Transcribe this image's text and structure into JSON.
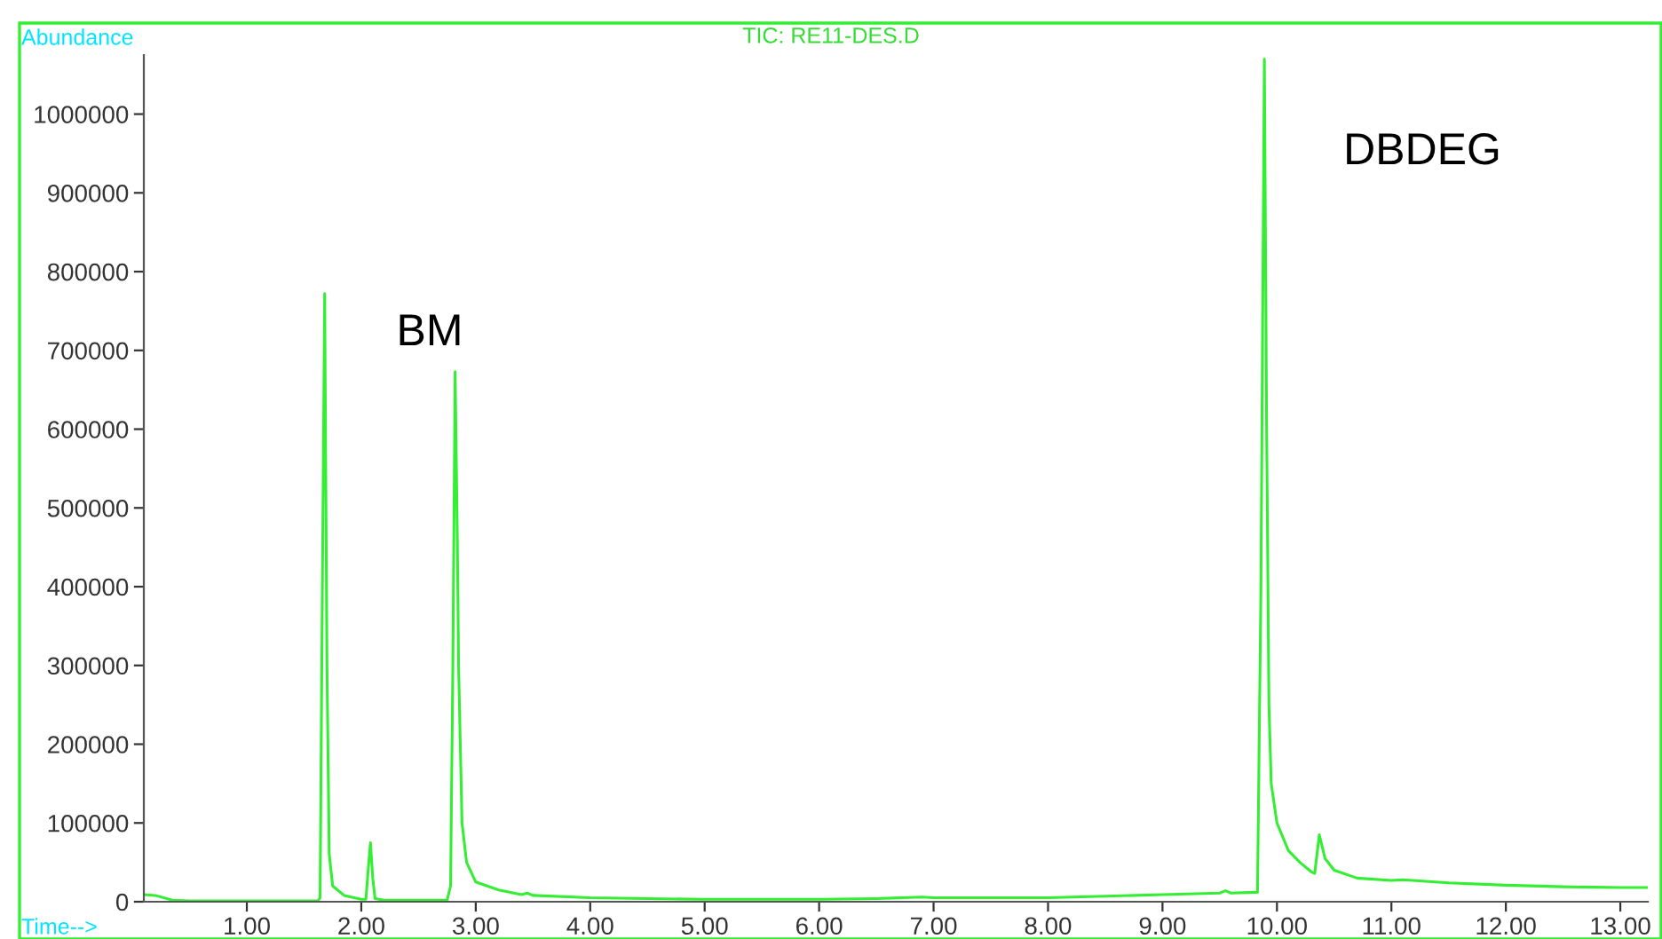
{
  "chart_data": {
    "type": "line",
    "title": "TIC: RE11-DES.D",
    "xlabel": "Time-->",
    "ylabel": "Abundance",
    "annotations": [
      "BM",
      "DBDEG"
    ],
    "series": [
      {
        "color": "#33ee33",
        "x": [
          0.1,
          0.2,
          0.35,
          0.5,
          1.0,
          1.5,
          1.62,
          1.64,
          1.66,
          1.68,
          1.7,
          1.72,
          1.75,
          1.85,
          2.0,
          2.04,
          2.06,
          2.08,
          2.1,
          2.12,
          2.2,
          2.5,
          2.75,
          2.78,
          2.8,
          2.82,
          2.84,
          2.85,
          2.88,
          2.92,
          3.0,
          3.2,
          3.4,
          3.45,
          3.5,
          4.0,
          5.0,
          6.0,
          6.5,
          6.9,
          7.0,
          8.0,
          8.5,
          9.0,
          9.5,
          9.55,
          9.6,
          9.8,
          9.83,
          9.86,
          9.89,
          9.91,
          9.93,
          9.95,
          10.0,
          10.1,
          10.2,
          10.3,
          10.33,
          10.37,
          10.42,
          10.5,
          10.7,
          11.0,
          11.1,
          11.5,
          12.0,
          12.5,
          13.0,
          13.24
        ],
        "values": [
          9000,
          8000,
          2000,
          1000,
          1000,
          1000,
          1000,
          5000,
          400000,
          772000,
          300000,
          60000,
          20000,
          8000,
          3000,
          3000,
          40000,
          75000,
          30000,
          4000,
          2000,
          2000,
          2000,
          20000,
          300000,
          673000,
          450000,
          300000,
          100000,
          50000,
          25000,
          15000,
          9000,
          11000,
          8000,
          5000,
          3000,
          3000,
          4000,
          6000,
          5000,
          5000,
          7000,
          9000,
          11000,
          14000,
          11000,
          12000,
          12000,
          400000,
          1070000,
          600000,
          250000,
          150000,
          100000,
          65000,
          50000,
          38000,
          36000,
          85000,
          55000,
          40000,
          30000,
          27000,
          28000,
          24000,
          21000,
          19000,
          18000,
          18000
        ]
      }
    ],
    "xlim": [
      0.1,
      13.24
    ],
    "ylim": [
      0,
      1075000
    ],
    "xticks": [
      {
        "value": 1,
        "label": "1.00"
      },
      {
        "value": 2,
        "label": "2.00"
      },
      {
        "value": 3,
        "label": "3.00"
      },
      {
        "value": 4,
        "label": "4.00"
      },
      {
        "value": 5,
        "label": "5.00"
      },
      {
        "value": 6,
        "label": "6.00"
      },
      {
        "value": 7,
        "label": "7.00"
      },
      {
        "value": 8,
        "label": "8.00"
      },
      {
        "value": 9,
        "label": "9.00"
      },
      {
        "value": 10,
        "label": "10.00"
      },
      {
        "value": 11,
        "label": "11.00"
      },
      {
        "value": 12,
        "label": "12.00"
      },
      {
        "value": 13,
        "label": "13.00"
      }
    ],
    "yticks": [
      0,
      100000,
      200000,
      300000,
      400000,
      500000,
      600000,
      700000,
      800000,
      900000,
      1000000
    ],
    "grid": false,
    "legend": false,
    "marker": "none",
    "line_style": "solid"
  }
}
